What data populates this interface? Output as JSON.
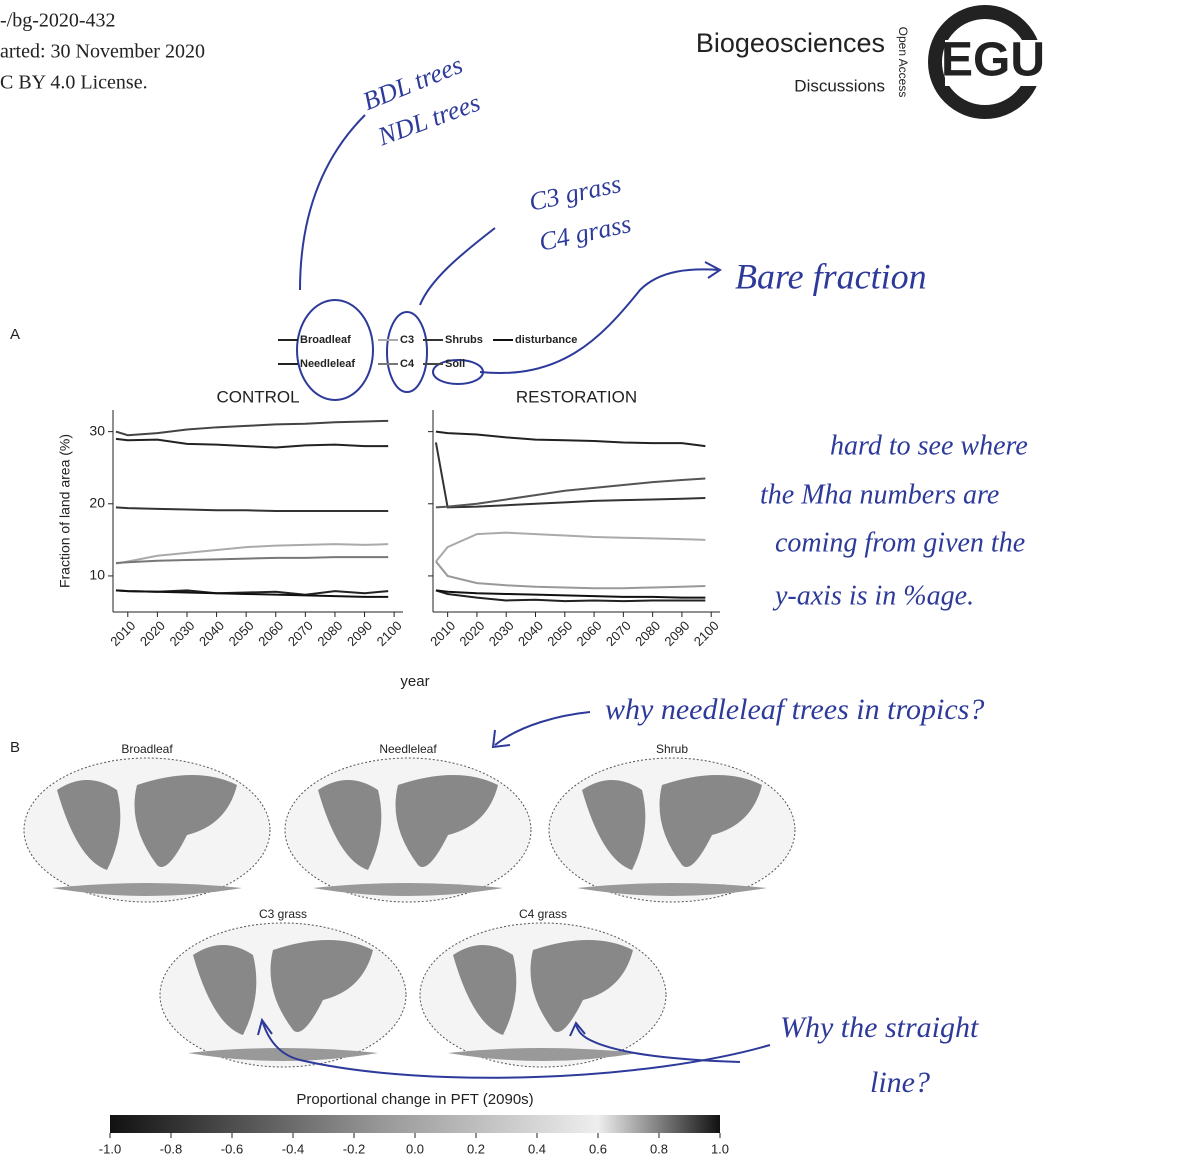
{
  "header": {
    "lines": [
      "-/bg-2020-432",
      "arted: 30 November 2020",
      "C BY 4.0 License."
    ],
    "journal": "Biogeosciences",
    "subjournal": "Discussions",
    "access": "Open Access",
    "logo": "EGU"
  },
  "figure": {
    "panel_a": "A",
    "panel_b": "B",
    "maps": [
      "Broadleaf",
      "Needleleaf",
      "Shrub",
      "C3 grass",
      "C4 grass"
    ],
    "colorbar": {
      "title": "Proportional change in PFT (2090s)",
      "ticks": [
        {
          "value": -1.0,
          "label": "-1.0"
        },
        -0.8,
        -0.6,
        -0.4,
        -0.2,
        {
          "value": 0.0,
          "label": "0.0"
        },
        0.2,
        0.4,
        0.6,
        0.8,
        {
          "value": 1.0,
          "label": "1.0"
        }
      ]
    }
  },
  "chart_data": [
    {
      "type": "line",
      "title": "CONTROL",
      "x_label": "year",
      "y_label": "Fraction of land area (%)",
      "xlim": [
        2005,
        2103
      ],
      "ylim": [
        5,
        33
      ],
      "xticks": [
        2010,
        2020,
        2030,
        2040,
        2050,
        2060,
        2070,
        2080,
        2090,
        2100
      ],
      "yticks": [
        10,
        20,
        30
      ],
      "x": [
        2006,
        2010,
        2020,
        2030,
        2040,
        2050,
        2060,
        2070,
        2080,
        2090,
        2098
      ],
      "series": [
        {
          "name": "Broadleaf",
          "color": "#222",
          "values": [
            29,
            28.8,
            28.9,
            28.3,
            28.2,
            28,
            27.8,
            28.1,
            28.2,
            28,
            28
          ]
        },
        {
          "name": "Needleleaf",
          "color": "#222",
          "values": [
            8,
            7.9,
            7.8,
            8,
            7.6,
            7.7,
            7.8,
            7.4,
            7.9,
            7.6,
            7.9
          ]
        },
        {
          "name": "C3",
          "color": "#aaa",
          "values": [
            11.7,
            12,
            12.8,
            13.2,
            13.6,
            14,
            14.2,
            14.3,
            14.4,
            14.3,
            14.4
          ]
        },
        {
          "name": "C4",
          "color": "#777",
          "values": [
            11.8,
            11.9,
            12.1,
            12.2,
            12.3,
            12.4,
            12.5,
            12.5,
            12.6,
            12.6,
            12.6
          ]
        },
        {
          "name": "Shrubs",
          "color": "#333",
          "values": [
            19.5,
            19.4,
            19.3,
            19.2,
            19.1,
            19.1,
            19,
            19,
            19,
            19,
            19
          ]
        },
        {
          "name": "Soil",
          "color": "#444",
          "values": [
            30,
            29.5,
            29.8,
            30.3,
            30.6,
            30.8,
            31,
            31.1,
            31.3,
            31.4,
            31.5
          ]
        },
        {
          "name": "disturbance",
          "color": "#111",
          "values": [
            8,
            7.9,
            7.8,
            7.7,
            7.6,
            7.5,
            7.4,
            7.3,
            7.2,
            7.1,
            7.1
          ]
        }
      ]
    },
    {
      "type": "line",
      "title": "RESTORATION",
      "xlim": [
        2005,
        2103
      ],
      "ylim": [
        5,
        33
      ],
      "xticks": [
        2010,
        2020,
        2030,
        2040,
        2050,
        2060,
        2070,
        2080,
        2090,
        2100
      ],
      "yticks": [
        10,
        20,
        30
      ],
      "x": [
        2006,
        2010,
        2020,
        2030,
        2040,
        2050,
        2060,
        2070,
        2080,
        2090,
        2098
      ],
      "series": [
        {
          "name": "Broadleaf",
          "color": "#222",
          "values": [
            30,
            29.8,
            29.6,
            29.2,
            28.9,
            28.8,
            28.7,
            28.5,
            28.4,
            28.4,
            28
          ]
        },
        {
          "name": "Needleleaf",
          "color": "#222",
          "values": [
            8,
            7.5,
            7,
            6.6,
            6.7,
            6.5,
            6.6,
            6.5,
            6.6,
            6.6,
            6.6
          ]
        },
        {
          "name": "C3",
          "color": "#aaa",
          "values": [
            12,
            14,
            15.8,
            16,
            15.8,
            15.6,
            15.4,
            15.3,
            15.2,
            15.1,
            15
          ]
        },
        {
          "name": "C4",
          "color": "#999",
          "values": [
            12,
            10,
            9,
            8.7,
            8.5,
            8.4,
            8.3,
            8.3,
            8.4,
            8.5,
            8.6
          ]
        },
        {
          "name": "Shrubs",
          "color": "#333",
          "values": [
            28.5,
            19.5,
            19.6,
            19.8,
            20,
            20.2,
            20.4,
            20.5,
            20.6,
            20.7,
            20.8
          ]
        },
        {
          "name": "Soil",
          "color": "#555",
          "values": [
            19.5,
            19.6,
            20,
            20.6,
            21.2,
            21.8,
            22.2,
            22.6,
            23,
            23.3,
            23.5
          ]
        },
        {
          "name": "disturbance",
          "color": "#111",
          "values": [
            8,
            7.8,
            7.6,
            7.5,
            7.4,
            7.3,
            7.2,
            7.1,
            7.1,
            7,
            7
          ]
        }
      ]
    }
  ],
  "annotations": {
    "bdl": "BDL trees",
    "ndl": "NDL trees",
    "c3": "C3 grass",
    "c4": "C4 grass",
    "bare": "Bare fraction",
    "mha": [
      "hard to see where",
      "the Mha numbers are",
      "coming from given the",
      "y-axis is in %age."
    ],
    "tropics": "why needleleaf trees in tropics?",
    "straight": [
      "Why the straight",
      "line?"
    ]
  }
}
